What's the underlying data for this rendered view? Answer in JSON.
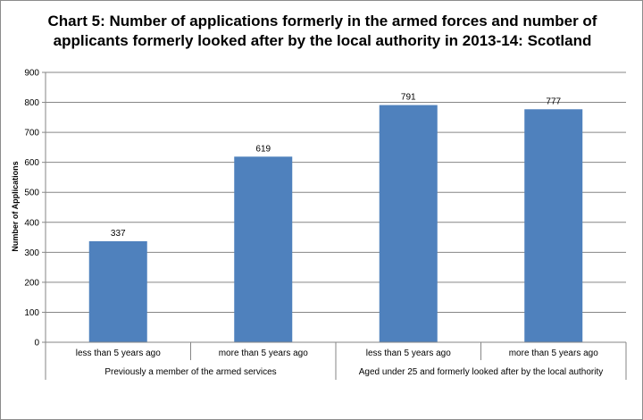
{
  "chart_data": {
    "type": "bar",
    "title_line1": "Chart 5: Number of applications formerly in the armed forces and number of",
    "title_line2": "applicants formerly looked after by the local authority in 2013-14:  Scotland",
    "ylabel": "Number of Applications",
    "ylim": [
      0,
      900
    ],
    "yticks": [
      "0",
      "100",
      "200",
      "300",
      "400",
      "500",
      "600",
      "700",
      "800",
      "900"
    ],
    "grid": true,
    "categories": [
      "less than 5 years ago",
      "more than 5 years ago",
      "less than 5 years ago",
      "more than 5 years ago"
    ],
    "groups": [
      {
        "label": "Previously a member of the armed services",
        "span": 2
      },
      {
        "label": "Aged under 25 and formerly looked after by the local authority",
        "span": 2
      }
    ],
    "values": [
      337,
      619,
      791,
      777
    ],
    "data_labels": [
      "337",
      "619",
      "791",
      "777"
    ],
    "bar_color": "#4f81bd"
  }
}
